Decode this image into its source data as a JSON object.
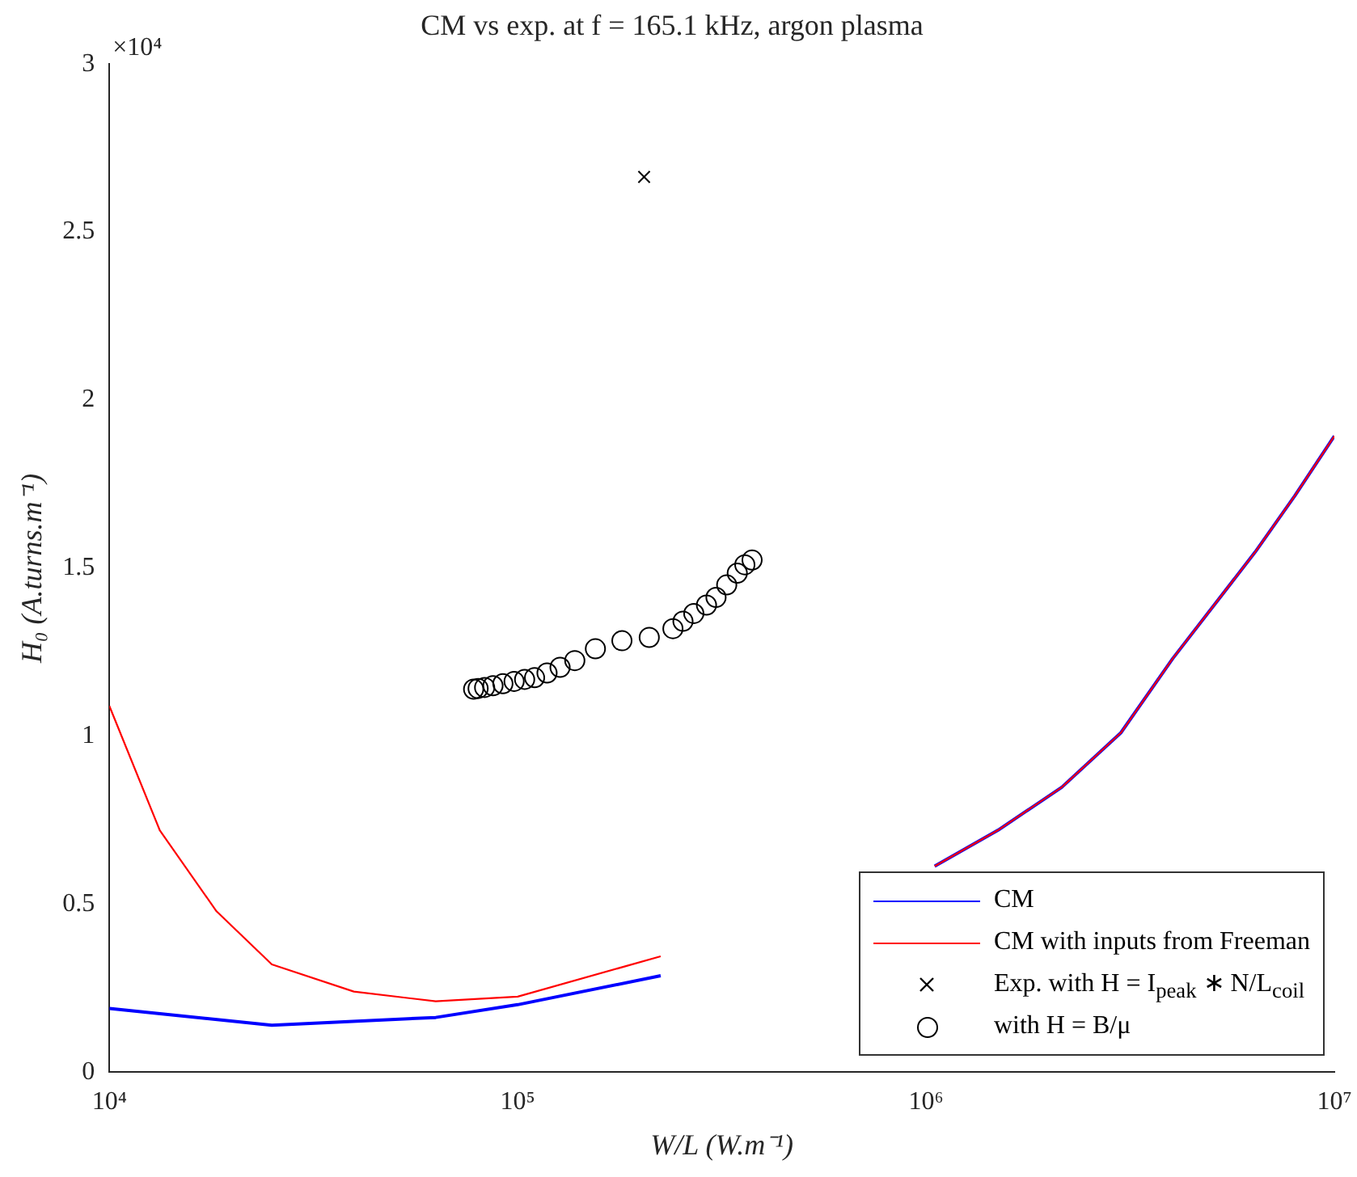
{
  "chart_data": {
    "type": "line",
    "title": "CM vs exp. at f = 165.1 kHz, argon plasma",
    "xlabel": "W/L (W.m⁻¹)",
    "ylabel": "H₀ (A.turns.m⁻¹)",
    "log": "x",
    "xlim": [
      10000,
      10000000
    ],
    "xticks": [
      {
        "value": 10000,
        "label": "10⁴"
      },
      {
        "value": 100000,
        "label": "10⁵"
      },
      {
        "value": 1000000,
        "label": "10⁶"
      },
      {
        "value": 10000000,
        "label": "10⁷"
      }
    ],
    "ylim": [
      0,
      3
    ],
    "yticks": [
      0,
      0.5,
      1,
      1.5,
      2,
      2.5,
      3
    ],
    "annotations": [
      "×10⁴"
    ],
    "grid": false,
    "legend": "bottom right",
    "series": [
      {
        "name": "CM",
        "color": "#0000ff",
        "x": [
          10000,
          25000,
          63000,
          100000,
          224000,
          300000,
          800000,
          1050000,
          1500000,
          2150000,
          3000000,
          4020000,
          6400000,
          8000000,
          10000000
        ],
        "values": [
          0.19,
          0.14,
          0.163,
          0.201,
          0.287,
          null,
          null,
          0.613,
          0.72,
          0.848,
          1.01,
          1.231,
          1.548,
          1.715,
          1.893
        ]
      },
      {
        "name": "CM with inputs from Freeman",
        "color": "#ff0000",
        "x": [
          10000,
          13300,
          18300,
          25000,
          39700,
          63000,
          100000,
          224000,
          300000,
          800000,
          1050000,
          1500000,
          2150000,
          3000000,
          4020000,
          6400000,
          8000000,
          10000000
        ],
        "values": [
          1.09,
          0.719,
          0.479,
          0.321,
          0.24,
          0.211,
          0.225,
          0.345,
          null,
          null,
          0.613,
          0.72,
          0.848,
          1.01,
          1.231,
          1.548,
          1.715,
          1.893
        ]
      },
      {
        "name": "Exp. with H = I$_{peak}$ ∗ N/L$_{coil}$",
        "color": "#000000",
        "type": "scatter",
        "marker": "cross",
        "x": [
          204000
        ],
        "values": [
          2.664
        ]
      },
      {
        "name": "with H = B/μ",
        "color": "#000000",
        "type": "scatter",
        "marker": "circle",
        "x": [
          78000,
          80000,
          83000,
          87000,
          92000,
          98000,
          104000,
          110000,
          118000,
          127000,
          138000,
          155000,
          180000,
          210000,
          240000,
          254000,
          270000,
          290000,
          306000,
          325000,
          345000,
          360000,
          375000
        ],
        "values": [
          1.14,
          1.142,
          1.145,
          1.15,
          1.156,
          1.163,
          1.169,
          1.174,
          1.188,
          1.205,
          1.225,
          1.26,
          1.284,
          1.294,
          1.32,
          1.342,
          1.365,
          1.39,
          1.413,
          1.45,
          1.485,
          1.51,
          1.524
        ]
      }
    ]
  }
}
